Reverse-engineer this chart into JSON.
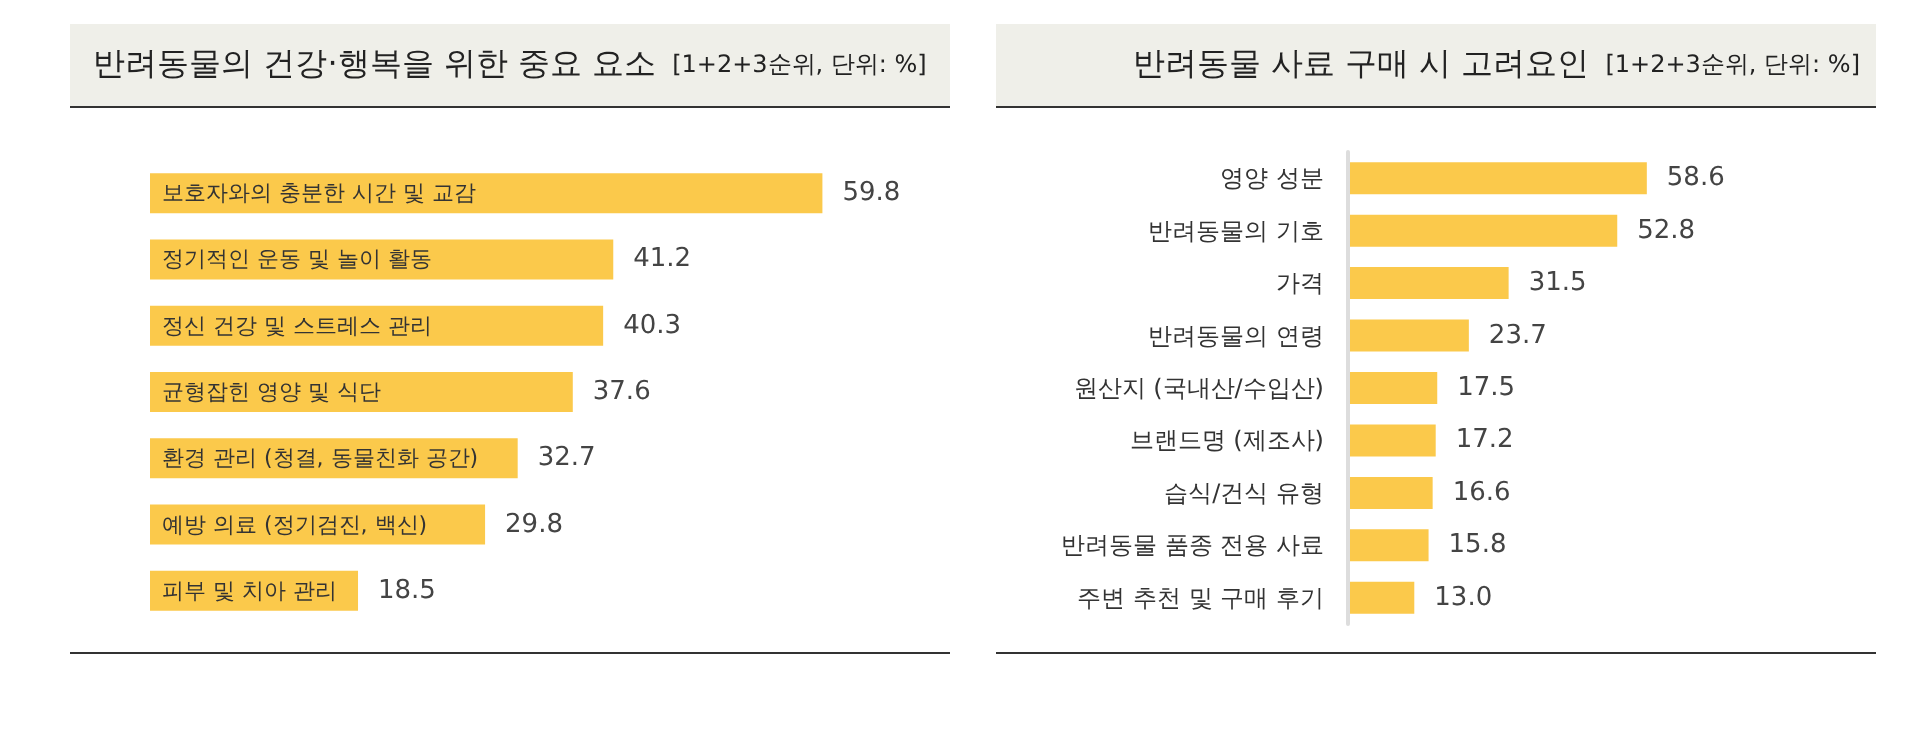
{
  "chart_data": [
    {
      "type": "bar",
      "orientation": "horizontal",
      "title": "반려동물의 건강·행복을 위한 중요 요소",
      "subtitle": "[1+2+3순위, 단위: %]",
      "categories": [
        "보호자와의 충분한 시간 및 교감",
        "정기적인 운동 및 놀이 활동",
        "정신 건강 및 스트레스 관리",
        "균형잡힌 영양 및 식단",
        "환경 관리 (청결, 동물친화 공간)",
        "예방 의료 (정기검진, 백신)",
        "피부 및 치아 관리"
      ],
      "series": [
        {
          "color": "#fbc94b",
          "values": [
            59.8,
            41.2,
            40.3,
            37.6,
            32.7,
            29.8,
            18.5
          ],
          "value_labels": [
            "59.8",
            "41.2",
            "40.3",
            "37.6",
            "32.7",
            "29.8",
            "18.5"
          ]
        }
      ]
    },
    {
      "type": "bar",
      "orientation": "horizontal",
      "title": "반려동물 사료 구매 시 고려요인",
      "subtitle": "[1+2+3순위, 단위: %]",
      "categories": [
        "영양 성분",
        "반려동물의 기호",
        "가격",
        "반려동물의 연령",
        "원산지 (국내산/수입산)",
        "브랜드명 (제조사)",
        "습식/건식 유형",
        "반려동물 품종 전용 사료",
        "주변 추천 및 구매 후기"
      ],
      "series": [
        {
          "color": "#fbc94b",
          "values": [
            58.6,
            52.8,
            31.5,
            23.7,
            17.5,
            17.2,
            16.6,
            15.8,
            13.0
          ],
          "value_labels": [
            "58.6",
            "52.8",
            "31.5",
            "23.7",
            "17.5",
            "17.2",
            "16.6",
            "15.8",
            "13.0"
          ]
        }
      ]
    }
  ]
}
